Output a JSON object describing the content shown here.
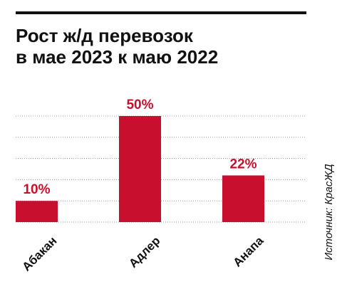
{
  "chart_data": {
    "type": "bar",
    "title": [
      "Рост ж/д перевозок",
      "в мае 2023 к маю 2022"
    ],
    "categories": [
      "Абакан",
      "Адлер",
      "Анапа"
    ],
    "values": [
      10,
      50,
      22
    ],
    "value_labels": [
      "10%",
      "50%",
      "22%"
    ],
    "color": "#c8102e",
    "ylim": [
      0,
      50
    ],
    "yticks": [
      0,
      10,
      20,
      30,
      40,
      50
    ],
    "grid": true,
    "source": "Источник: КрасЖД"
  }
}
